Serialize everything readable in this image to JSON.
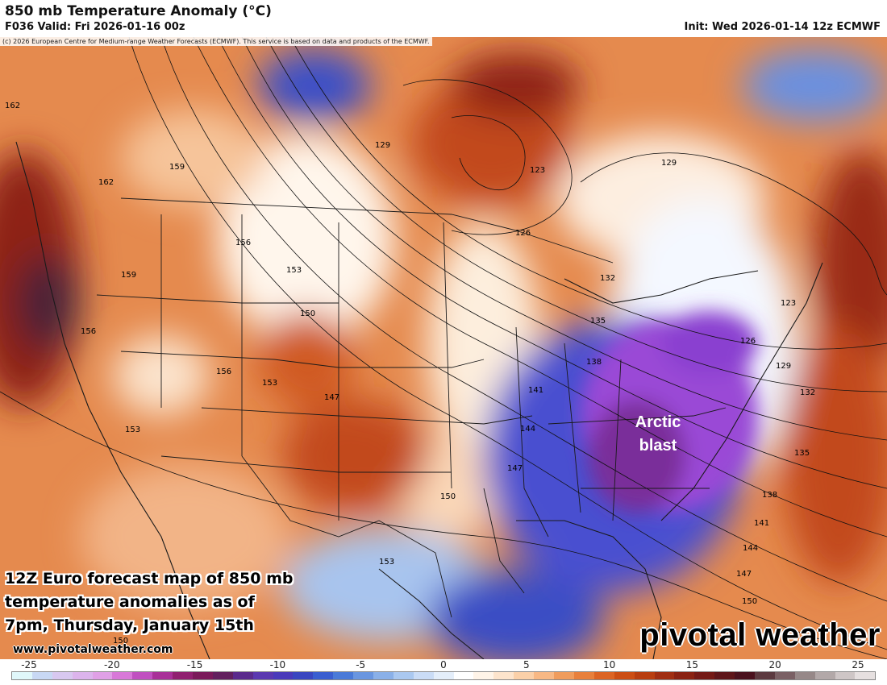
{
  "header": {
    "title": "850 mb Temperature Anomaly (°C)",
    "valid": "F036 Valid: Fri 2026-01-16 00z",
    "init": "Init: Wed 2026-01-14 12z ECMWF",
    "copyright": "(c) 2026 European Centre for Medium-range Weather Forecasts (ECMWF). This service is based on data and products of the ECMWF."
  },
  "annotations": {
    "caption": "12Z Euro forecast map of 850 mb temperature anomalies as of 7pm, Thursday, January 15th",
    "site": "www.pivotalweather.com",
    "arctic_label": "Arctic blast",
    "brand": "pivotal weather"
  },
  "contour_labels": [
    "162",
    "162",
    "159",
    "159",
    "156",
    "156",
    "153",
    "153",
    "150",
    "156",
    "153",
    "147",
    "129",
    "123",
    "126",
    "132",
    "135",
    "138",
    "141",
    "144",
    "147",
    "150",
    "153",
    "150",
    "129",
    "123",
    "126",
    "129",
    "132",
    "135",
    "138",
    "141",
    "144",
    "147",
    "150"
  ],
  "colorbar": {
    "ticks": [
      "-25",
      "-20",
      "-15",
      "-10",
      "-5",
      "0",
      "5",
      "10",
      "15",
      "20",
      "25"
    ],
    "colors": [
      "#e0f7fa",
      "#c8d8f4",
      "#d8c8f0",
      "#dcb4ec",
      "#e0a0e6",
      "#d878d8",
      "#c050c0",
      "#a83098",
      "#902070",
      "#7a1a5a",
      "#62205e",
      "#5a2a8c",
      "#5a38b0",
      "#4a3aba",
      "#3a46c0",
      "#3a5ed0",
      "#4a7ad8",
      "#6a96e0",
      "#8ab0e8",
      "#aac8f0",
      "#cadcf6",
      "#e4eefa",
      "#ffffff",
      "#fff4e8",
      "#fde4cc",
      "#fbd0a8",
      "#f8b884",
      "#f09c5c",
      "#e8803c",
      "#dc6424",
      "#cc4e14",
      "#b83e10",
      "#a02e12",
      "#8a2212",
      "#741a16",
      "#5e161a",
      "#4a121e",
      "#5c3a40",
      "#7a6064",
      "#968888",
      "#b2a8a8",
      "#cec6c6",
      "#e6e0e0"
    ]
  },
  "legend_items": [
    "850 mb temperature anomaly",
    "geopotential height contours (dam)"
  ]
}
